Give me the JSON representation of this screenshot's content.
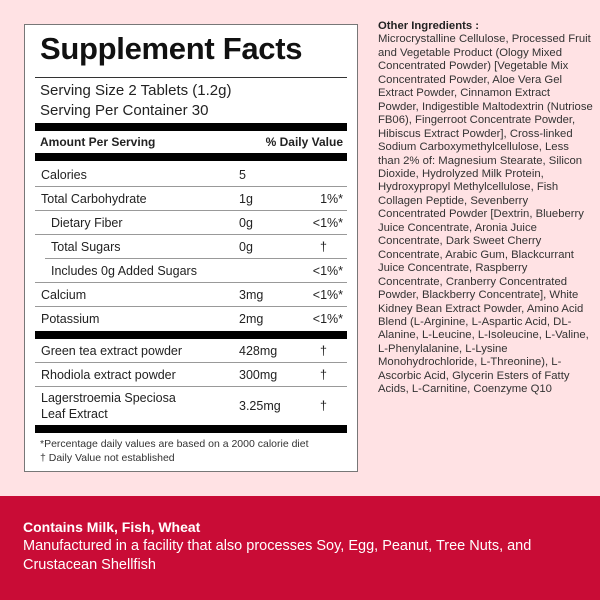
{
  "facts": {
    "title": "Supplement Facts",
    "serving_size": "Serving Size 2 Tablets (1.2g)",
    "servings_per_container": "Serving Per Container 30",
    "header_amount": "Amount Per Serving",
    "header_dv": "% Daily Value",
    "nutrients": [
      {
        "name": "Calories",
        "amount": "5",
        "dv": ""
      },
      {
        "name": "Total Carbohydrate",
        "amount": "1g",
        "dv": "1%*"
      },
      {
        "name": "Dietary Fiber",
        "amount": "0g",
        "dv": "<1%*"
      },
      {
        "name": "Total Sugars",
        "amount": "0g",
        "dv": "†"
      },
      {
        "name": "Includes 0g Added Sugars",
        "amount": "",
        "dv": "<1%*"
      },
      {
        "name": "Calcium",
        "amount": "3mg",
        "dv": "<1%*"
      },
      {
        "name": "Potassium",
        "amount": "2mg",
        "dv": "<1%*"
      }
    ],
    "extracts": [
      {
        "name": "Green tea extract powder",
        "amount": "428mg",
        "dv": "†"
      },
      {
        "name": "Rhodiola extract powder",
        "amount": "300mg",
        "dv": "†"
      },
      {
        "name": "Lagerstroemia Speciosa Leaf Extract",
        "amount": "3.25mg",
        "dv": "†"
      }
    ],
    "footnote_1": "*Percentage daily values are based on a 2000 calorie diet",
    "footnote_2": "† Daily Value not established"
  },
  "ingredients": {
    "heading": "Other Ingredients :",
    "text": "Microcrystalline Cellulose, Processed Fruit and Vegetable Product (Ology Mixed Concentrated Powder) [Vegetable Mix Concentrated Powder, Aloe Vera Gel Extract Powder, Cinnamon Extract Powder, Indigestible Maltodextrin (Nutriose FB06), Fingerroot Concentrate Powder, Hibiscus Extract Powder], Cross-linked Sodium Carboxymethylcellulose, Less than 2% of: Magnesium Stearate, Silicon Dioxide, Hydrolyzed Milk Protein, Hydroxypropyl Methylcellulose, Fish Collagen Peptide, Sevenberry Concentrated Powder [Dextrin, Blueberry Juice Concentrate, Aronia Juice Concentrate, Dark Sweet Cherry Concentrate, Arabic Gum, Blackcurrant Juice Concentrate, Raspberry Concentrate, Cranberry Concentrated Powder, Blackberry Concentrate], White Kidney Bean Extract Powder, Amino Acid Blend (L-Arginine, L-Aspartic Acid, DL-Alanine, L-Leucine, L-Isoleucine, L-Valine, L-Phenylalanine, L-Lysine Monohydrochloride, L-Threonine), L-Ascorbic Acid, Glycerin Esters of Fatty Acids, L-Carnitine, Coenzyme Q10"
  },
  "allergens": {
    "contains": "Contains Milk, Fish, Wheat",
    "facility": "Manufactured in a facility that also processes Soy, Egg, Peanut, Tree Nuts, and Crustacean Shellfish"
  },
  "colors": {
    "background": "#ffe2e4",
    "band": "#c90c36"
  }
}
